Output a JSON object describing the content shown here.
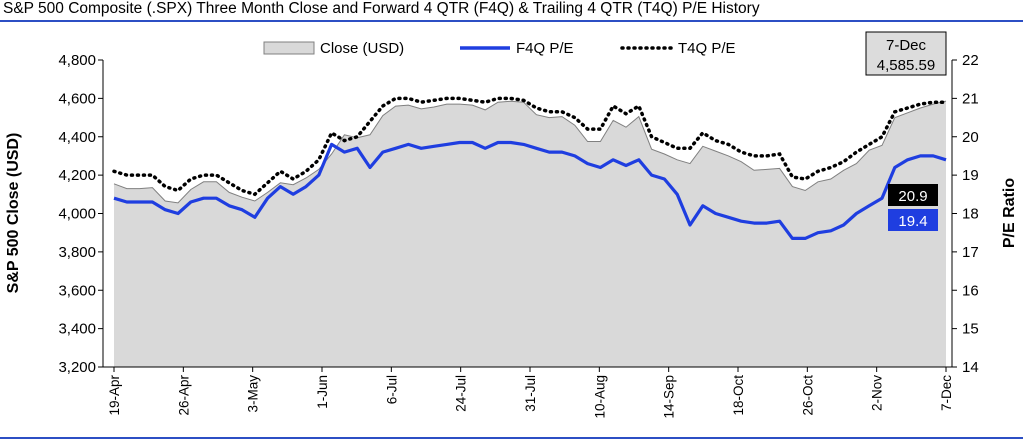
{
  "title": "S&P 500 Composite (.SPX) Three Month Close and Forward 4 QTR (F4Q) & Trailing 4 QTR (T4Q) P/E History",
  "chart_data": {
    "type": "area",
    "ylabel": "S&P 500 Close (USD)",
    "y2label": "P/E Ratio",
    "ylim": [
      3200,
      4800
    ],
    "y2lim": [
      14,
      22
    ],
    "y_ticks": [
      "3,200",
      "3,400",
      "3,600",
      "3,800",
      "4,000",
      "4,200",
      "4,400",
      "4,600",
      "4,800"
    ],
    "y2_ticks": [
      "14",
      "15",
      "16",
      "17",
      "18",
      "19",
      "20",
      "21",
      "22"
    ],
    "x_tick_labels": [
      "19-Apr",
      "26-Apr",
      "3-May",
      "1-Jun",
      "6-Jul",
      "24-Jul",
      "31-Jul",
      "10-Aug",
      "14-Sep",
      "18-Oct",
      "26-Oct",
      "2-Nov",
      "7-Dec"
    ],
    "legend": [
      "Close (USD)",
      "F4Q P/E",
      "T4Q P/E"
    ],
    "legend_position": "top",
    "annotation_date": "7-Dec",
    "annotation_close": "4,585.59",
    "t4q_last_label": "20.9",
    "f4q_last_label": "19.4",
    "colors": {
      "close_fill": "#d9d9d9",
      "close_edge": "#808080",
      "f4q": "#1f3ee0",
      "t4q": "#000000",
      "rule": "#2c4fc4"
    },
    "series": [
      {
        "name": "Close (USD)",
        "axis": "left",
        "values": [
          4155,
          4130,
          4130,
          4135,
          4065,
          4055,
          4125,
          4165,
          4165,
          4110,
          4085,
          4065,
          4110,
          4160,
          4150,
          4185,
          4230,
          4310,
          4410,
          4395,
          4410,
          4510,
          4560,
          4565,
          4545,
          4555,
          4570,
          4570,
          4565,
          4540,
          4580,
          4585,
          4580,
          4515,
          4500,
          4505,
          4460,
          4375,
          4375,
          4485,
          4450,
          4505,
          4335,
          4310,
          4280,
          4260,
          4350,
          4325,
          4300,
          4270,
          4225,
          4230,
          4235,
          4140,
          4120,
          4165,
          4180,
          4225,
          4260,
          4330,
          4355,
          4500,
          4525,
          4550,
          4570,
          4585.59
        ]
      },
      {
        "name": "F4Q P/E",
        "axis": "right",
        "values": [
          18.4,
          18.3,
          18.3,
          18.3,
          18.1,
          18.0,
          18.3,
          18.4,
          18.4,
          18.2,
          18.1,
          17.9,
          18.4,
          18.7,
          18.5,
          18.7,
          19.0,
          19.8,
          19.6,
          19.7,
          19.2,
          19.6,
          19.7,
          19.8,
          19.7,
          19.75,
          19.8,
          19.85,
          19.85,
          19.7,
          19.85,
          19.85,
          19.8,
          19.7,
          19.6,
          19.6,
          19.5,
          19.3,
          19.2,
          19.4,
          19.25,
          19.4,
          19.0,
          18.9,
          18.5,
          17.7,
          18.2,
          18.0,
          17.9,
          17.8,
          17.75,
          17.75,
          17.8,
          17.35,
          17.35,
          17.5,
          17.55,
          17.7,
          18.0,
          18.2,
          18.4,
          19.2,
          19.4,
          19.5,
          19.5,
          19.4
        ]
      },
      {
        "name": "T4Q P/E",
        "axis": "right",
        "values": [
          19.1,
          19.0,
          19.0,
          19.0,
          18.7,
          18.6,
          18.9,
          19.0,
          19.0,
          18.8,
          18.6,
          18.5,
          18.8,
          19.1,
          18.9,
          19.1,
          19.4,
          20.1,
          19.9,
          20.0,
          20.4,
          20.8,
          21.0,
          21.0,
          20.9,
          20.95,
          21.0,
          21.0,
          20.95,
          20.9,
          21.0,
          21.0,
          20.95,
          20.75,
          20.65,
          20.65,
          20.5,
          20.2,
          20.2,
          20.8,
          20.6,
          20.8,
          20.0,
          19.85,
          19.7,
          19.7,
          20.1,
          19.9,
          19.8,
          19.6,
          19.5,
          19.5,
          19.55,
          18.95,
          18.9,
          19.1,
          19.2,
          19.35,
          19.6,
          19.8,
          20.0,
          20.65,
          20.75,
          20.85,
          20.9,
          20.9
        ]
      }
    ]
  }
}
